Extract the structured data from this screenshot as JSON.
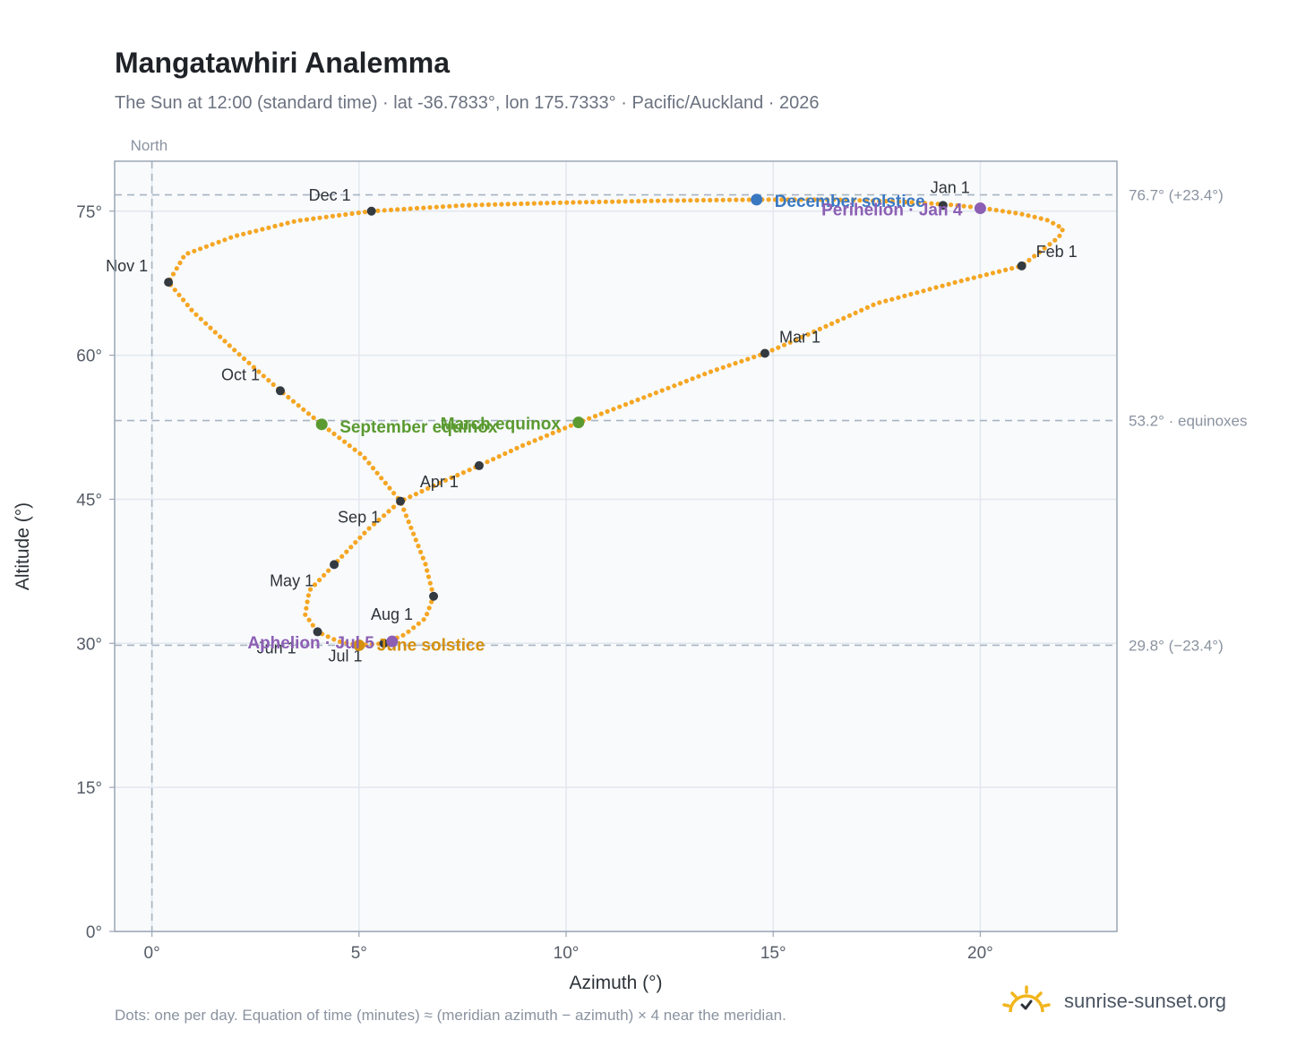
{
  "header": {
    "title": "Mangatawhiri Analemma",
    "subtitle": "The Sun at 12:00 (standard time) · lat -36.7833°, lon 175.7333° · Pacific/Auckland · 2026"
  },
  "footer": {
    "note": "Dots: one per day. Equation of time (minutes) ≈ (meridian azimuth − azimuth) × 4 near the meridian.",
    "brand": "sunrise-sunset.org"
  },
  "colors": {
    "path": "#f5a623",
    "month_marker": "#333a40",
    "equinox": "#5a9a30",
    "december_solstice": "#3a78c2",
    "june_solstice": "#d4900f",
    "apsis": "#8c5fb4",
    "reference": "#a7b4c2",
    "grid": "#e3e8ee",
    "plot_bg": "#f8fafc",
    "plot_border": "#9aa6b4"
  },
  "chart_data": {
    "type": "scatter",
    "title": "Mangatawhiri Analemma",
    "xlabel": "Azimuth (°)",
    "ylabel": "Altitude (°)",
    "xlim": [
      -0.9,
      23.3
    ],
    "ylim": [
      0,
      80.2
    ],
    "xticks": [
      0,
      5,
      10,
      15,
      20
    ],
    "xtick_labels": [
      "0°",
      "5°",
      "10°",
      "15°",
      "20°"
    ],
    "yticks": [
      0,
      15,
      30,
      45,
      60,
      75
    ],
    "ytick_labels": [
      "0°",
      "15°",
      "30°",
      "45°",
      "60°",
      "75°"
    ],
    "grid": true,
    "meridian": {
      "azimuth": 0,
      "label": "North"
    },
    "reference_lines": [
      {
        "altitude": 76.7,
        "label": "76.7° (+23.4°)"
      },
      {
        "altitude": 53.2,
        "label": "53.2° · equinoxes"
      },
      {
        "altitude": 29.8,
        "label": "29.8° (−23.4°)"
      }
    ],
    "path_points": [
      [
        5.3,
        75.0
      ],
      [
        7.5,
        75.6
      ],
      [
        10.0,
        75.9
      ],
      [
        12.5,
        76.1
      ],
      [
        14.6,
        76.2
      ],
      [
        16.5,
        76.2
      ],
      [
        18.0,
        76.0
      ],
      [
        19.2,
        75.7
      ],
      [
        20.1,
        75.3
      ],
      [
        21.0,
        74.7
      ],
      [
        21.6,
        74.1
      ],
      [
        22.0,
        73.2
      ],
      [
        21.9,
        72.3
      ],
      [
        21.0,
        69.3
      ],
      [
        19.5,
        67.7
      ],
      [
        17.5,
        65.4
      ],
      [
        15.5,
        61.5
      ],
      [
        14.8,
        60.2
      ],
      [
        13.5,
        58.3
      ],
      [
        12.0,
        55.8
      ],
      [
        10.3,
        53.0
      ],
      [
        8.9,
        50.5
      ],
      [
        7.9,
        48.5
      ],
      [
        7.0,
        46.8
      ],
      [
        6.0,
        44.8
      ],
      [
        5.2,
        41.8
      ],
      [
        4.4,
        38.2
      ],
      [
        3.8,
        35.5
      ],
      [
        3.7,
        33.0
      ],
      [
        4.0,
        31.2
      ],
      [
        4.5,
        30.2
      ],
      [
        5.0,
        29.8
      ],
      [
        5.6,
        30.0
      ],
      [
        6.1,
        30.9
      ],
      [
        6.6,
        32.6
      ],
      [
        6.8,
        34.9
      ],
      [
        6.6,
        38.3
      ],
      [
        6.0,
        44.8
      ],
      [
        5.1,
        49.5
      ],
      [
        4.1,
        52.8
      ],
      [
        3.1,
        56.3
      ],
      [
        2.0,
        60.5
      ],
      [
        1.0,
        64.5
      ],
      [
        0.4,
        67.6
      ],
      [
        0.8,
        70.5
      ],
      [
        2.0,
        72.4
      ],
      [
        3.5,
        74.0
      ],
      [
        5.3,
        75.0
      ]
    ],
    "month_markers": [
      {
        "label": "Jan 1",
        "azimuth": 19.1,
        "altitude": 75.6
      },
      {
        "label": "Feb 1",
        "azimuth": 21.0,
        "altitude": 69.3
      },
      {
        "label": "Mar 1",
        "azimuth": 14.8,
        "altitude": 60.2
      },
      {
        "label": "Apr 1",
        "azimuth": 7.9,
        "altitude": 48.5
      },
      {
        "label": "May 1",
        "azimuth": 4.4,
        "altitude": 38.2
      },
      {
        "label": "Jun 1",
        "azimuth": 4.0,
        "altitude": 31.2
      },
      {
        "label": "Jul 1",
        "azimuth": 5.6,
        "altitude": 30.0
      },
      {
        "label": "Aug 1",
        "azimuth": 6.8,
        "altitude": 34.9
      },
      {
        "label": "Sep 1",
        "azimuth": 6.0,
        "altitude": 44.8
      },
      {
        "label": "Oct 1",
        "azimuth": 3.1,
        "altitude": 56.3
      },
      {
        "label": "Nov 1",
        "azimuth": 0.4,
        "altitude": 67.6
      },
      {
        "label": "Dec 1",
        "azimuth": 5.3,
        "altitude": 75.0
      }
    ],
    "events": [
      {
        "label": "December solstice",
        "azimuth": 14.6,
        "altitude": 76.2,
        "color": "#3a78c2"
      },
      {
        "label": "Perihelion · Jan 4",
        "azimuth": 20.0,
        "altitude": 75.3,
        "color": "#8c5fb4"
      },
      {
        "label": "March equinox",
        "azimuth": 10.3,
        "altitude": 53.0,
        "color": "#5a9a30"
      },
      {
        "label": "September equinox",
        "azimuth": 4.1,
        "altitude": 52.8,
        "color": "#5a9a30"
      },
      {
        "label": "June solstice",
        "azimuth": 5.0,
        "altitude": 29.8,
        "color": "#d4900f"
      },
      {
        "label": "Aphelion · Jul 5",
        "azimuth": 5.8,
        "altitude": 30.2,
        "color": "#8c5fb4"
      }
    ]
  }
}
